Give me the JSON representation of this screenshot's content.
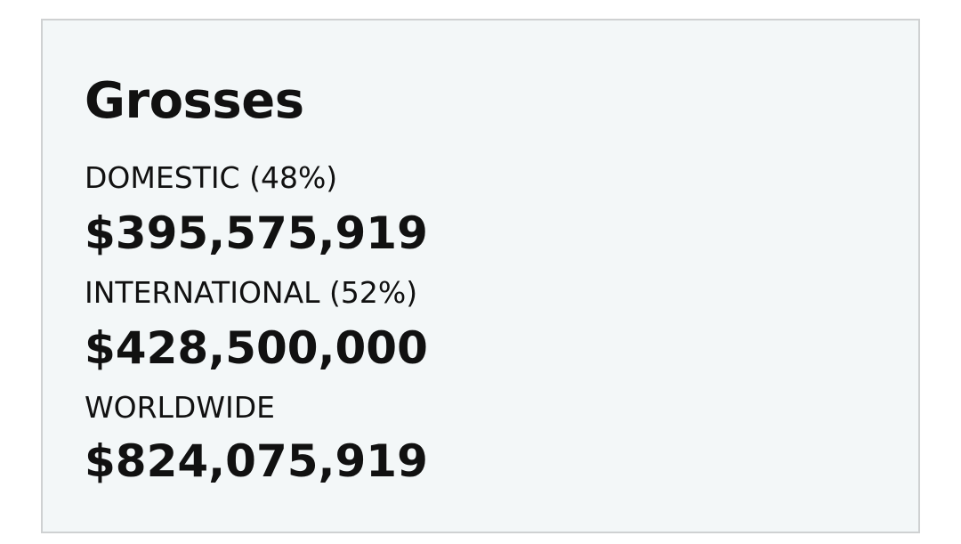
{
  "header": {
    "title": "Grosses"
  },
  "rows": [
    {
      "label": "DOMESTIC (48%)",
      "value": "$395,575,919"
    },
    {
      "label": "INTERNATIONAL (52%)",
      "value": "$428,500,000"
    },
    {
      "label": "WORLDWIDE",
      "value": "$824,075,919"
    }
  ]
}
